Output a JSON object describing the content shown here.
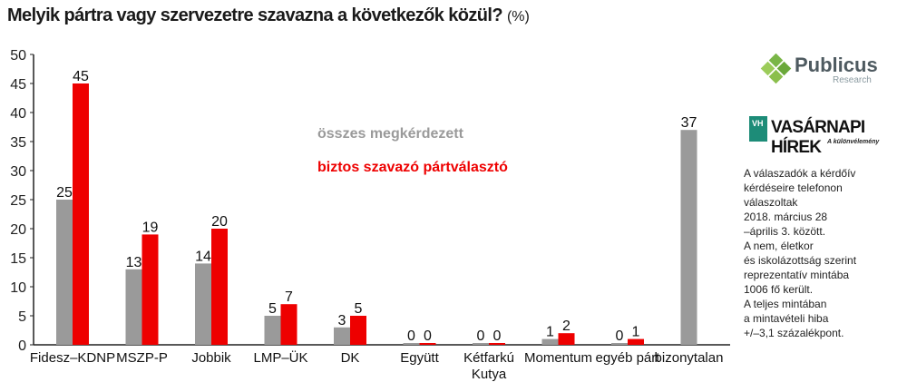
{
  "title": "Melyik pártra vagy szervezetre szavazna a következők közül?",
  "title_unit": "(%)",
  "logos": {
    "publicus_name": "Publicus",
    "publicus_sub": "Research",
    "vh_name": "VASÁRNAPI HÍREK",
    "vh_sub": "A különvélemény",
    "vh_icon": "VH"
  },
  "note_lines": [
    "A válaszadók a kérdőív",
    "kérdéseire telefonon",
    "válaszoltak",
    "2018. március 28",
    "–április 3. között.",
    "A nem, életkor",
    "és iskolázottság szerint",
    "reprezentatív mintába",
    "1006 fő került.",
    "A teljes mintában",
    "a mintavételi hiba",
    "+/–3,1 százalékpont."
  ],
  "colors": {
    "gray": "#9a9a9a",
    "red": "#ee0000",
    "axis": "#222222"
  },
  "chart_data": {
    "type": "bar",
    "ylim": [
      0,
      50
    ],
    "yticks": [
      0,
      5,
      10,
      15,
      20,
      25,
      30,
      35,
      40,
      45,
      50
    ],
    "grid": false,
    "legend_placement": "center",
    "categories": [
      [
        "Fidesz–KDNP"
      ],
      [
        "MSZP-P"
      ],
      [
        "Jobbik"
      ],
      [
        "LMP–ÜK"
      ],
      [
        "DK"
      ],
      [
        "Együtt"
      ],
      [
        "Kétfarkú",
        "Kutya"
      ],
      [
        "Momentum"
      ],
      [
        "egyéb párt"
      ],
      [
        "bizonytalan"
      ]
    ],
    "series": [
      {
        "name": "összes megkérdezett",
        "color": "#9a9a9a",
        "values": [
          25,
          13,
          14,
          5,
          3,
          0,
          0,
          1,
          0,
          37
        ]
      },
      {
        "name": "biztos szavazó pártválasztó",
        "color": "#ee0000",
        "values": [
          45,
          19,
          20,
          7,
          5,
          0,
          0,
          2,
          1,
          null
        ]
      }
    ]
  }
}
